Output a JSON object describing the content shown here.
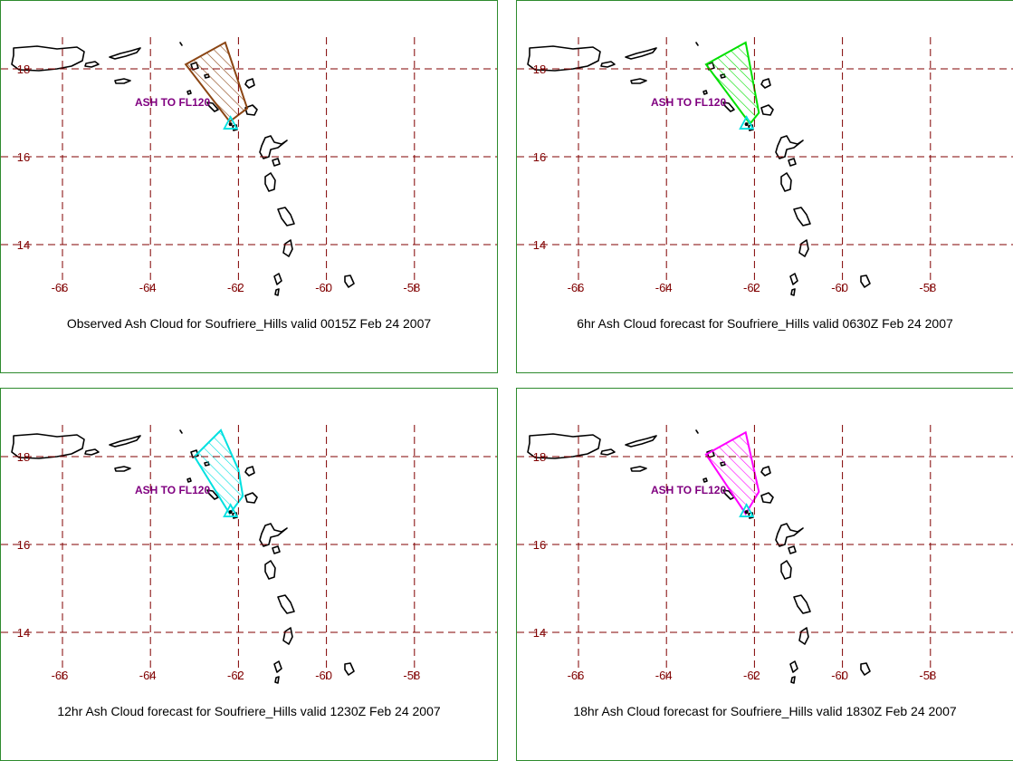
{
  "panels": [
    {
      "caption": "Observed Ash Cloud for Soufriere_Hills valid 0015Z Feb 24 2007",
      "ash_label": "ASH TO FL120",
      "cloud_color": "#8b4513",
      "cloud_lonlat": [
        [
          -63.2,
          18.1
        ],
        [
          -62.3,
          18.6
        ],
        [
          -61.8,
          17.1
        ],
        [
          -62.2,
          16.8
        ]
      ]
    },
    {
      "caption": "6hr Ash Cloud forecast for Soufriere_Hills valid 0630Z Feb 24 2007",
      "ash_label": "ASH TO FL120",
      "cloud_color": "#00e000",
      "cloud_lonlat": [
        [
          -63.1,
          18.1
        ],
        [
          -62.2,
          18.6
        ],
        [
          -61.9,
          17.0
        ],
        [
          -62.1,
          16.75
        ]
      ]
    },
    {
      "caption": "12hr Ash Cloud forecast for Soufriere_Hills valid 1230Z Feb 24 2007",
      "ash_label": "ASH TO FL120",
      "cloud_color": "#00e0e0",
      "cloud_lonlat": [
        [
          -63.0,
          18.0
        ],
        [
          -62.4,
          18.6
        ],
        [
          -62.0,
          17.7
        ],
        [
          -61.9,
          17.1
        ],
        [
          -62.2,
          16.7
        ]
      ]
    },
    {
      "caption": "18hr Ash Cloud forecast for Soufriere_Hills valid 1830Z Feb 24 2007",
      "ash_label": "ASH TO FL120",
      "cloud_color": "#ff00ff",
      "cloud_lonlat": [
        [
          -63.1,
          18.05
        ],
        [
          -62.2,
          18.55
        ],
        [
          -61.9,
          17.2
        ],
        [
          -62.2,
          16.7
        ]
      ]
    }
  ],
  "lon_ticks": [
    "-66",
    "-64",
    "-62",
    "-60",
    "-58"
  ],
  "lat_ticks": [
    "18",
    "16",
    "14"
  ],
  "volcano": {
    "name": "Soufriere_Hills",
    "lon": -62.18,
    "lat": 16.72
  },
  "colors": {
    "grid": "#800000",
    "tick_label": "#800000",
    "ash_label": "#800080",
    "volcano_marker": "#00e0e0",
    "coast": "#000000",
    "frame": "#2e8b2e"
  }
}
